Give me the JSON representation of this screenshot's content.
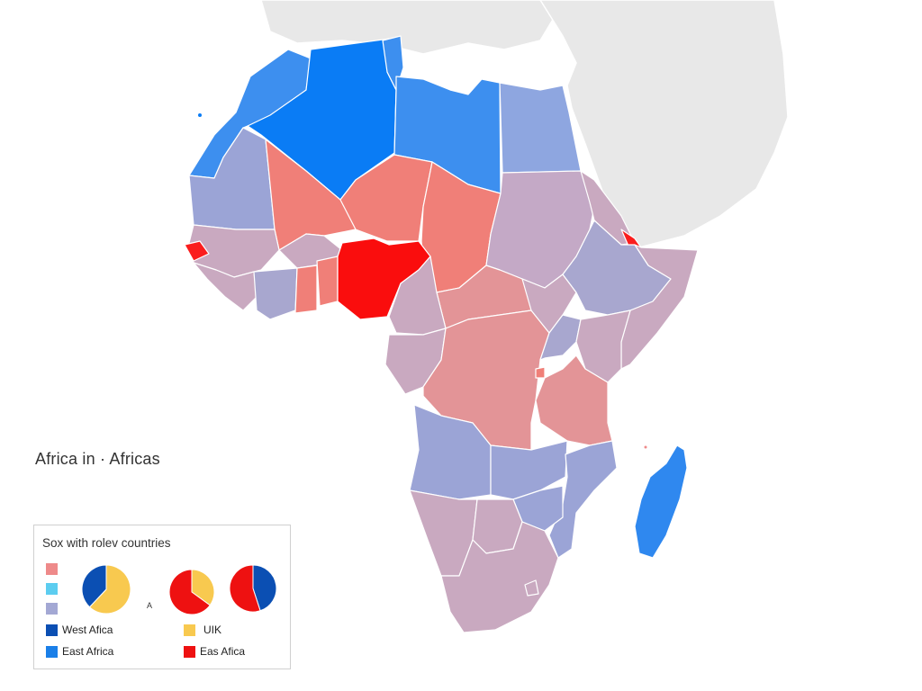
{
  "title": "Africa in · Africas",
  "colors": {
    "background_land": "#e8e8e8",
    "ocean": "#ffffff",
    "strong_blue": "#0a7cf5",
    "medium_blue": "#3d8fef",
    "periwinkle": "#9ba4d6",
    "mauve": "#c9a9c0",
    "salmon": "#f07f78",
    "pink_red": "#e39497",
    "strong_red": "#fa0d0d",
    "pie_navy": "#0b4fb3",
    "pie_yellow": "#f8c94f",
    "pie_red": "#ee1111"
  },
  "legend": {
    "title": "Sox with rolev countries",
    "swatches": [
      {
        "color": "#ee8a8a"
      },
      {
        "color": "#5ccdf0"
      },
      {
        "color": "#a3a8d4"
      }
    ],
    "pie_tag": "A",
    "pies": [
      {
        "slices": [
          {
            "color": "#f8c94f",
            "fraction": 0.62
          },
          {
            "color": "#0b4fb3",
            "fraction": 0.38
          }
        ]
      },
      {
        "slices": [
          {
            "color": "#f8c94f",
            "fraction": 0.35
          },
          {
            "color": "#ee1111",
            "fraction": 0.65
          }
        ]
      },
      {
        "slices": [
          {
            "color": "#0b4fb3",
            "fraction": 0.45
          },
          {
            "color": "#ee1111",
            "fraction": 0.55
          }
        ]
      }
    ],
    "items": [
      {
        "label": "West Afica",
        "color": "#0b4fb3"
      },
      {
        "label": "UIK",
        "color": "#f8c94f"
      },
      {
        "label": "East Africa",
        "color": "#1a7fe8"
      },
      {
        "label": "Eas Afica",
        "color": "#ee1111"
      }
    ]
  }
}
